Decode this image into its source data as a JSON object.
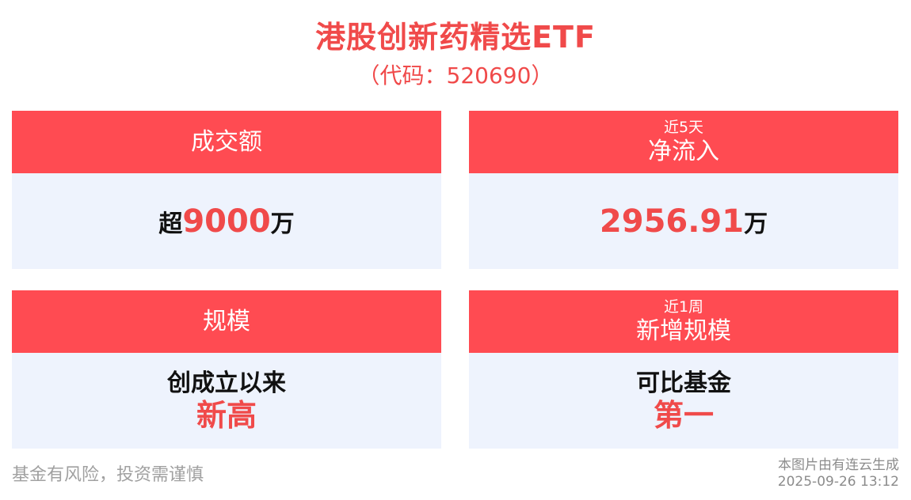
{
  "header": {
    "title": "港股创新药精选ETF",
    "subtitle": "（代码：520690）"
  },
  "cards": [
    {
      "title": "成交额",
      "prefix": "超",
      "value": "9000",
      "unit": "万"
    },
    {
      "small": "近5天",
      "title": "净流入",
      "value": "2956.91",
      "unit": "万"
    },
    {
      "title": "规模",
      "line1": "创成立以来",
      "line2": "新高"
    },
    {
      "small": "近1周",
      "title": "新增规模",
      "line1": "可比基金",
      "line2": "第一"
    }
  ],
  "footer": {
    "disclaimer": "基金有风险，投资需谨慎",
    "generated_by": "本图片由有连云生成",
    "timestamp": "2025-09-26 13:12"
  },
  "colors": {
    "accent": "#ff4b52",
    "card_bg": "#eef3fd",
    "text_red": "#f04a4a"
  }
}
